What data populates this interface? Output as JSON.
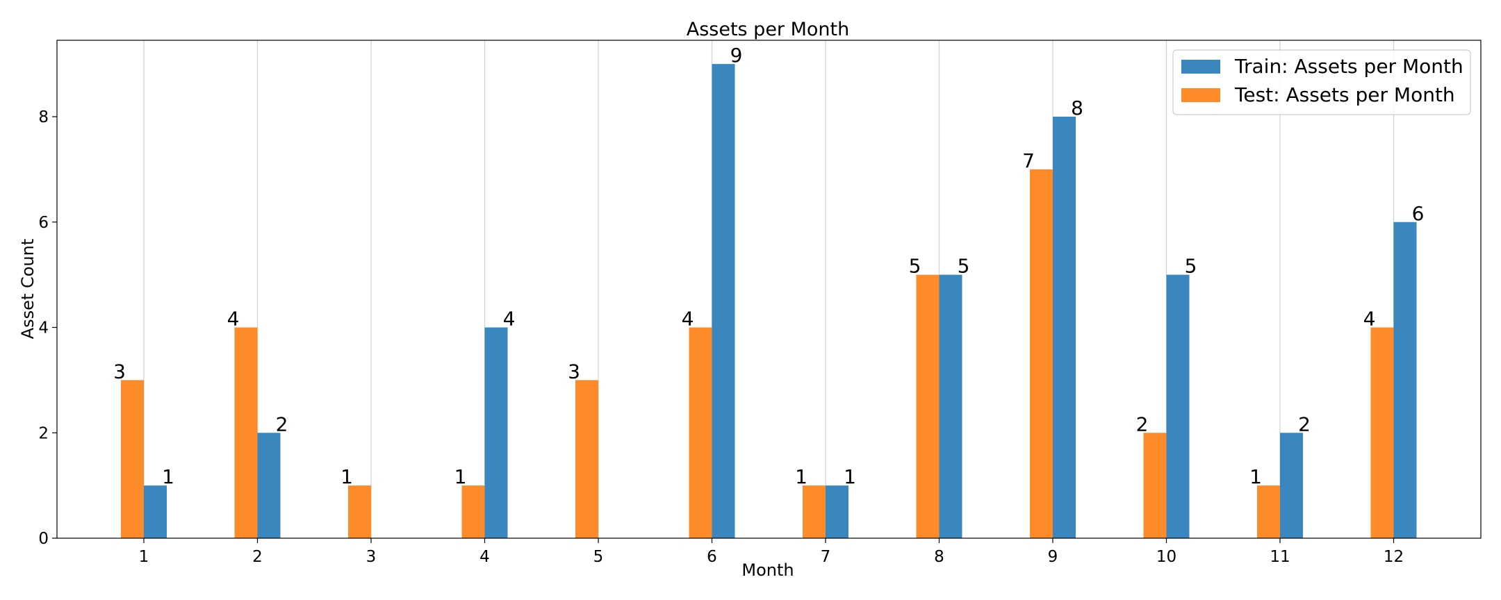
{
  "chart_data": {
    "type": "bar",
    "title": "Assets per Month",
    "xlabel": "Month",
    "ylabel": "Asset Count",
    "categories": [
      "1",
      "2",
      "3",
      "4",
      "5",
      "6",
      "7",
      "8",
      "9",
      "10",
      "11",
      "12"
    ],
    "series": [
      {
        "name": "Train: Assets per Month",
        "color": "#3a86bf",
        "values": [
          1,
          2,
          0,
          4,
          0,
          9,
          1,
          5,
          8,
          5,
          2,
          6
        ]
      },
      {
        "name": "Test: Assets per Month",
        "color": "#fe8b29",
        "values": [
          3,
          4,
          1,
          1,
          3,
          4,
          1,
          5,
          7,
          2,
          1,
          4
        ]
      }
    ],
    "ylim": [
      0,
      9.45
    ],
    "yticks": [
      "0",
      "2",
      "4",
      "6",
      "8"
    ],
    "grid": "vertical",
    "legend_position": "top-right"
  }
}
